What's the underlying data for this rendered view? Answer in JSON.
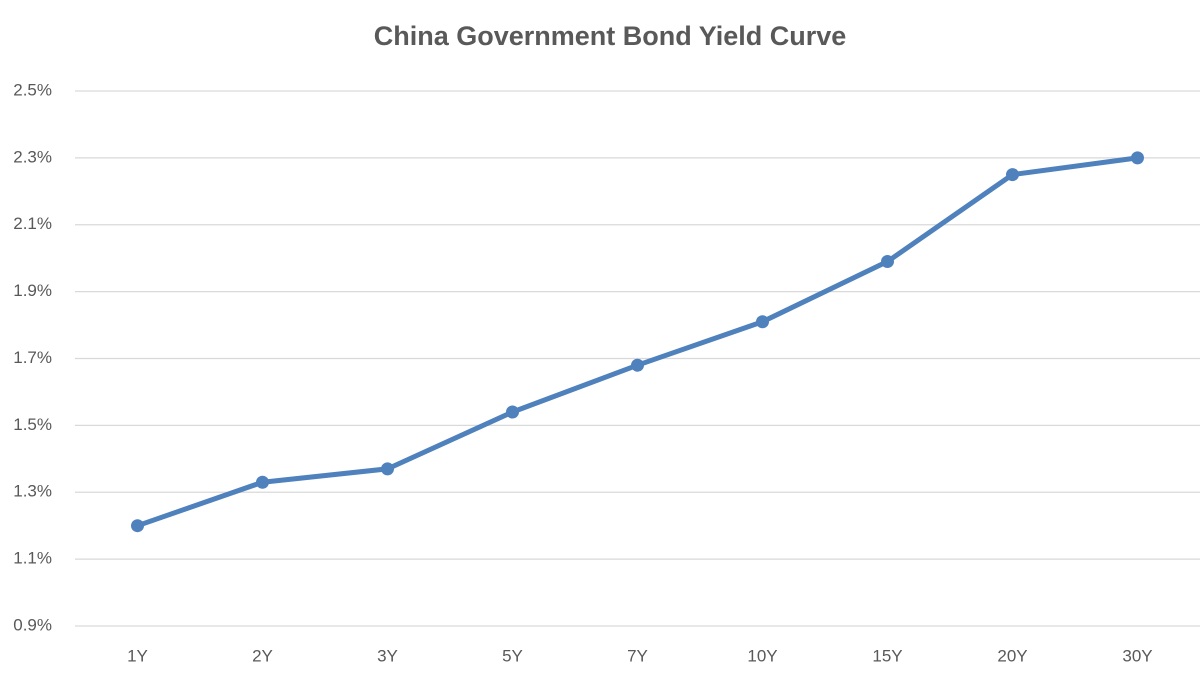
{
  "chart_data": {
    "type": "line",
    "title": "China Government Bond Yield Curve",
    "categories": [
      "1Y",
      "2Y",
      "3Y",
      "5Y",
      "7Y",
      "10Y",
      "15Y",
      "20Y",
      "30Y"
    ],
    "values": [
      1.2,
      1.33,
      1.37,
      1.54,
      1.68,
      1.81,
      1.99,
      2.25,
      2.3
    ],
    "color": "#4f81bd",
    "ylim": [
      0.9,
      2.5
    ],
    "yticks": [
      {
        "value": 0.9,
        "label": "0.9%"
      },
      {
        "value": 1.1,
        "label": "1.1%"
      },
      {
        "value": 1.3,
        "label": "1.3%"
      },
      {
        "value": 1.5,
        "label": "1.5%"
      },
      {
        "value": 1.7,
        "label": "1.7%"
      },
      {
        "value": 1.9,
        "label": "1.9%"
      },
      {
        "value": 2.1,
        "label": "2.1%"
      },
      {
        "value": 2.3,
        "label": "2.3%"
      },
      {
        "value": 2.5,
        "label": "2.5%"
      }
    ],
    "grid": true
  }
}
